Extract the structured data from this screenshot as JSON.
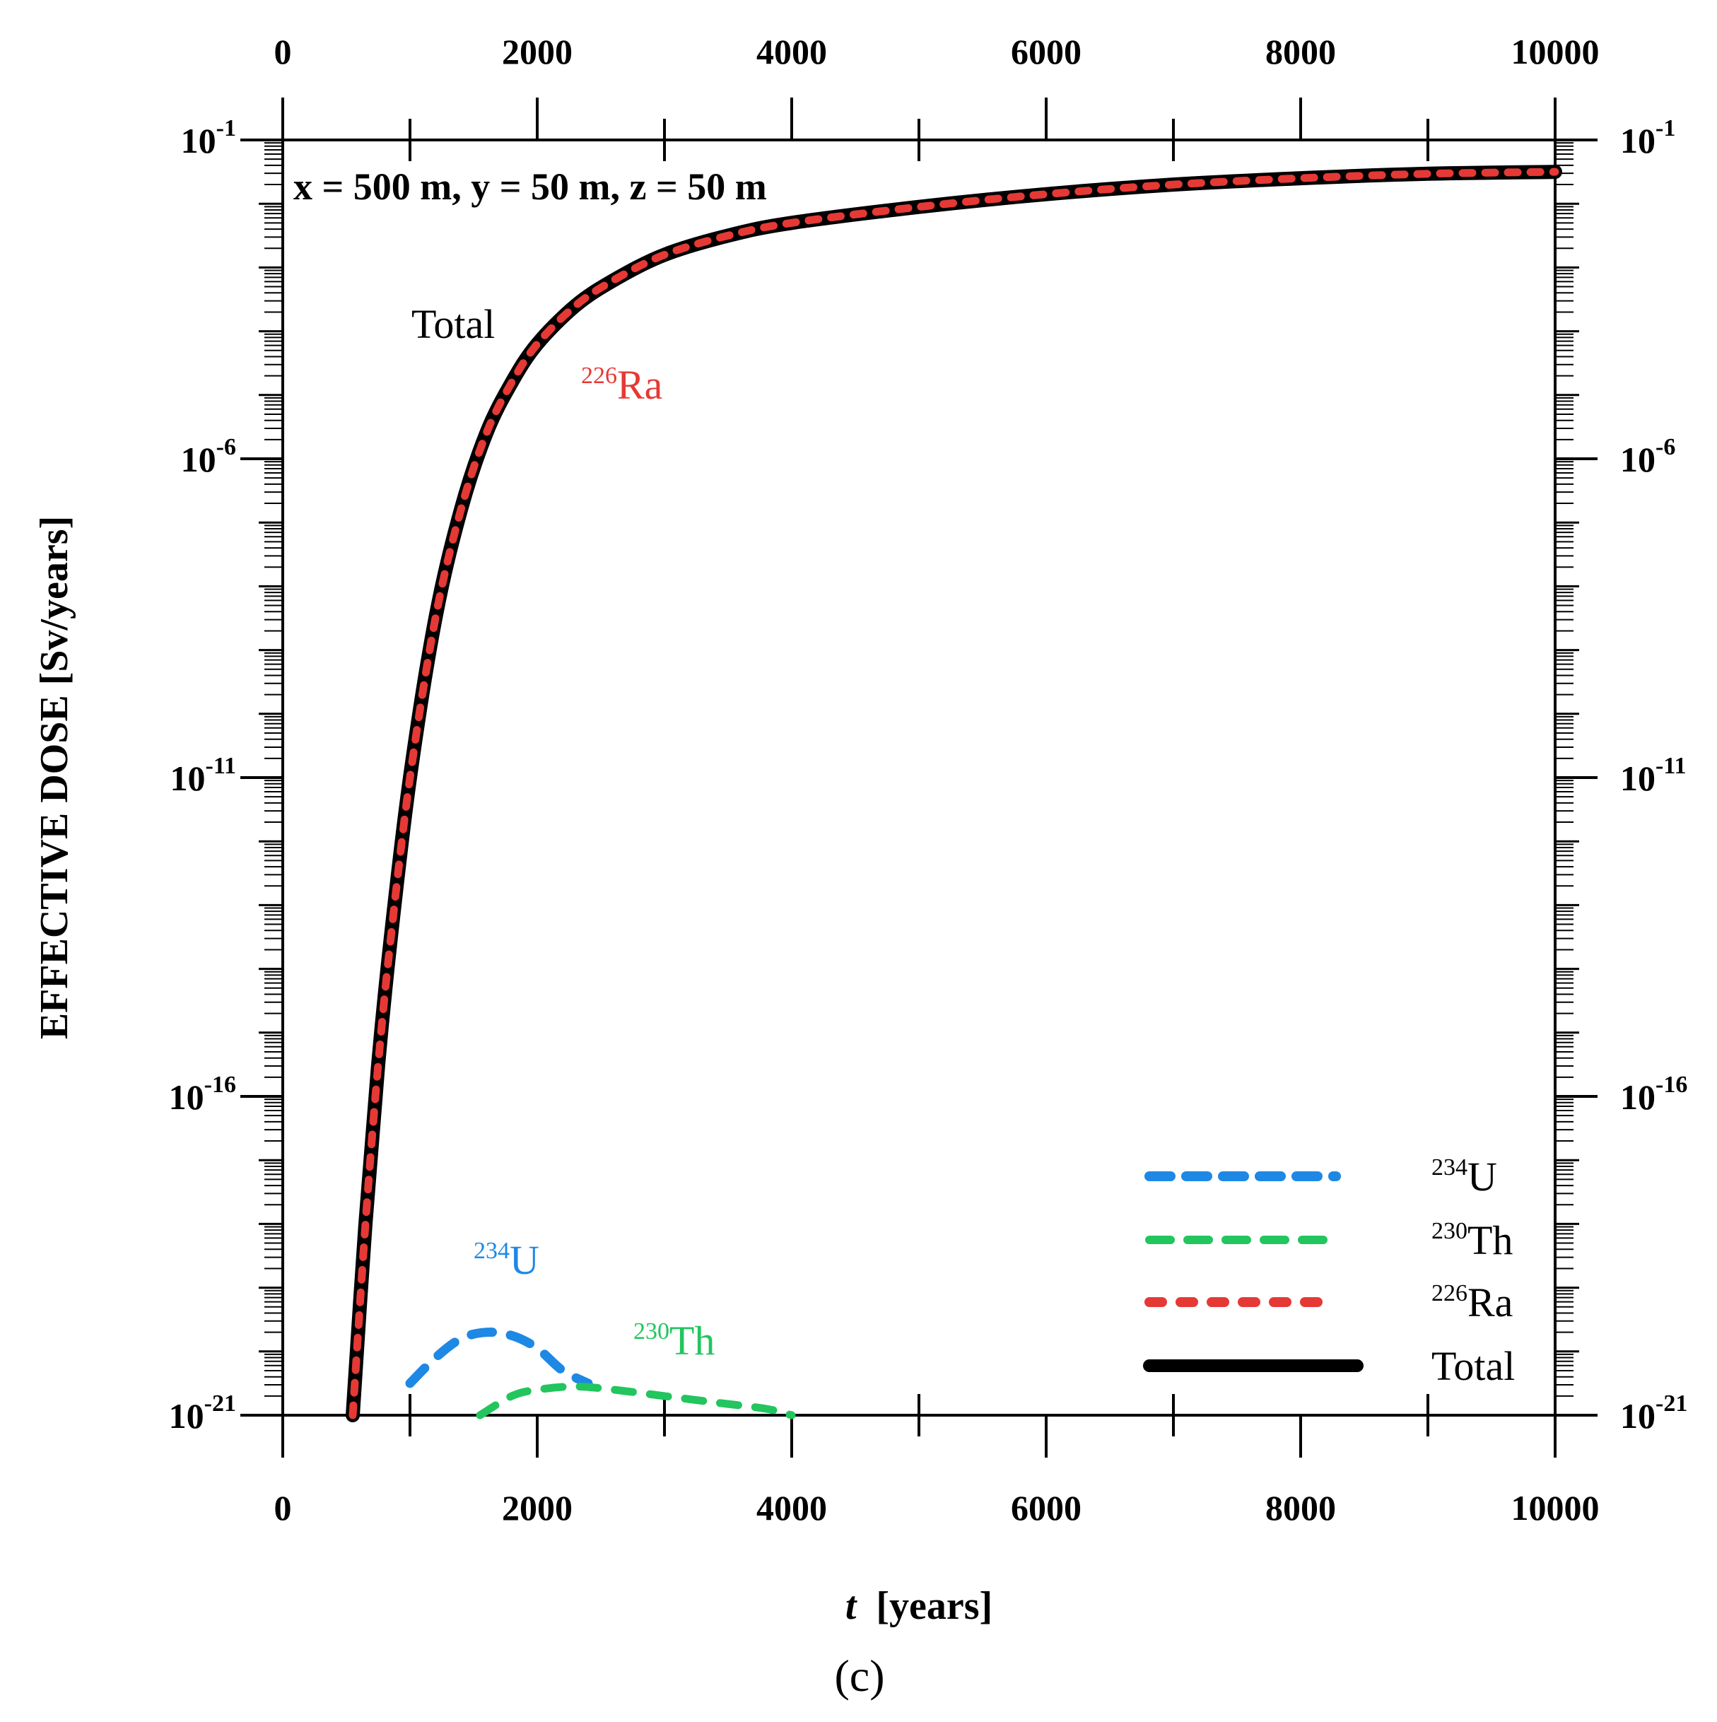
{
  "chart_data": {
    "type": "line",
    "title": "",
    "caption": "(c)",
    "annotation_condition": "x = 500 m, y = 50 m, z = 50 m",
    "xlabel": "t [years]",
    "xlabel_var": "t",
    "xlabel_unit": "[years]",
    "ylabel": "EFFECTIVE DOSE [Sv/years]",
    "xlim": [
      0,
      10000
    ],
    "ylim_log10": [
      -21,
      -1
    ],
    "yscale": "log",
    "x_ticks": [
      "0",
      "2000",
      "4000",
      "6000",
      "8000",
      "10000"
    ],
    "x_tick_values": [
      0,
      2000,
      4000,
      6000,
      8000,
      10000
    ],
    "y_ticks": [
      {
        "base": "10",
        "exp": "-1",
        "value": -1
      },
      {
        "base": "10",
        "exp": "-6",
        "value": -6
      },
      {
        "base": "10",
        "exp": "-11",
        "value": -11
      },
      {
        "base": "10",
        "exp": "-16",
        "value": -16
      },
      {
        "base": "10",
        "exp": "-21",
        "value": -21
      }
    ],
    "legend_position": "bottom-right",
    "series": [
      {
        "name": "234U",
        "mass": "234",
        "symbol": "U",
        "color": "#1e88e5",
        "style": "dashed",
        "x": [
          1000,
          1200,
          1400,
          1600,
          1800,
          2000,
          2200,
          2400
        ],
        "log10_y": [
          -20.5,
          -20.1,
          -19.8,
          -19.7,
          -19.75,
          -19.95,
          -20.3,
          -20.5
        ]
      },
      {
        "name": "230Th",
        "mass": "230",
        "symbol": "Th",
        "color": "#22c55e",
        "style": "dashed",
        "x": [
          1550,
          1800,
          2000,
          2300,
          2600,
          3000,
          3400,
          3800,
          4000
        ],
        "log10_y": [
          -21.0,
          -20.7,
          -20.6,
          -20.55,
          -20.6,
          -20.7,
          -20.8,
          -20.9,
          -21.0
        ]
      },
      {
        "name": "226Ra",
        "mass": "226",
        "symbol": "Ra",
        "color": "#e53935",
        "style": "dotted",
        "x": [
          550,
          650,
          750,
          850,
          1000,
          1200,
          1400,
          1600,
          1800,
          2000,
          2300,
          2600,
          3000,
          3500,
          4000,
          5000,
          6000,
          7000,
          8000,
          9000,
          10000
        ],
        "log10_y": [
          -21.0,
          -18.0,
          -15.5,
          -13.5,
          -11.0,
          -8.5,
          -6.8,
          -5.6,
          -4.8,
          -4.2,
          -3.6,
          -3.2,
          -2.8,
          -2.5,
          -2.3,
          -2.05,
          -1.85,
          -1.7,
          -1.6,
          -1.53,
          -1.5
        ]
      },
      {
        "name": "Total",
        "mass": "",
        "symbol": "Total",
        "color": "#000000",
        "style": "solid",
        "x": [
          550,
          650,
          750,
          850,
          1000,
          1200,
          1400,
          1600,
          1800,
          2000,
          2300,
          2600,
          3000,
          3500,
          4000,
          5000,
          6000,
          7000,
          8000,
          9000,
          10000
        ],
        "log10_y": [
          -21.0,
          -18.0,
          -15.5,
          -13.5,
          -11.0,
          -8.5,
          -6.8,
          -5.6,
          -4.8,
          -4.2,
          -3.6,
          -3.2,
          -2.8,
          -2.5,
          -2.3,
          -2.05,
          -1.85,
          -1.7,
          -1.6,
          -1.53,
          -1.5
        ]
      }
    ],
    "curve_labels": [
      {
        "series": "Total",
        "mass": "",
        "symbol": "Total",
        "color": "#000000"
      },
      {
        "series": "226Ra",
        "mass": "226",
        "symbol": "Ra",
        "color": "#e53935"
      },
      {
        "series": "234U",
        "mass": "234",
        "symbol": "U",
        "color": "#1e88e5"
      },
      {
        "series": "230Th",
        "mass": "230",
        "symbol": "Th",
        "color": "#22c55e"
      }
    ]
  }
}
